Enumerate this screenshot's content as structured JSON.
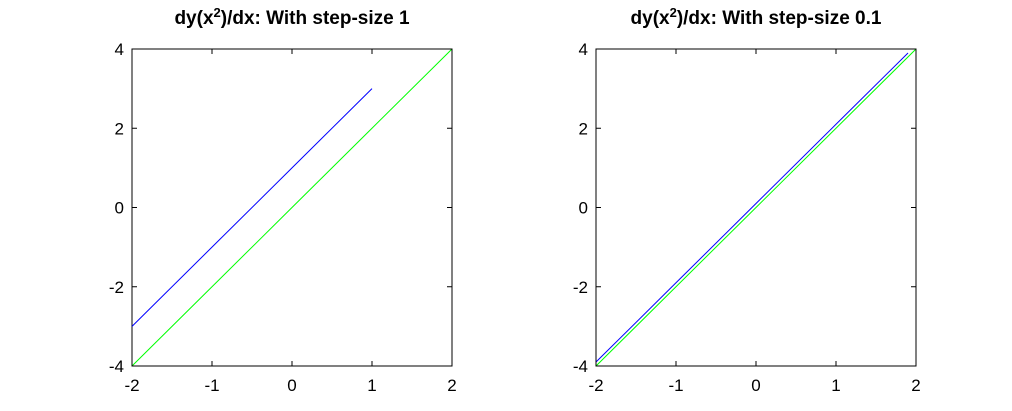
{
  "chart_data": [
    {
      "type": "line",
      "title": "dy(x²)/dx: With step-size 1",
      "title_parts": {
        "prefix": "dy(x",
        "sup": "2",
        "suffix": ")/dx: With step-size 1"
      },
      "xlim": [
        -2,
        2
      ],
      "ylim": [
        -4,
        4
      ],
      "xticks": [
        -2,
        -1,
        0,
        1,
        2
      ],
      "yticks": [
        -4,
        -2,
        0,
        2,
        4
      ],
      "series": [
        {
          "color": "#0000ff",
          "x": [
            -2,
            -1,
            0,
            1
          ],
          "y": [
            -3,
            -1,
            1,
            3
          ]
        },
        {
          "color": "#00ff00",
          "x": [
            -2,
            -1,
            0,
            1,
            2
          ],
          "y": [
            -4,
            -2,
            0,
            2,
            4
          ]
        }
      ]
    },
    {
      "type": "line",
      "title": "dy(x²)/dx: With step-size 0.1",
      "title_parts": {
        "prefix": "dy(x",
        "sup": "2",
        "suffix": ")/dx: With step-size 0.1"
      },
      "xlim": [
        -2,
        2
      ],
      "ylim": [
        -4,
        4
      ],
      "xticks": [
        -2,
        -1,
        0,
        1,
        2
      ],
      "yticks": [
        -4,
        -2,
        0,
        2,
        4
      ],
      "series": [
        {
          "color": "#0000ff",
          "x": [
            -2,
            -1,
            0,
            1,
            1.9
          ],
          "y": [
            -3.9,
            -1.9,
            0.1,
            2.1,
            3.9
          ]
        },
        {
          "color": "#00ff00",
          "x": [
            -2,
            -1,
            0,
            1,
            2
          ],
          "y": [
            -4,
            -2,
            0,
            2,
            4
          ]
        }
      ]
    }
  ]
}
